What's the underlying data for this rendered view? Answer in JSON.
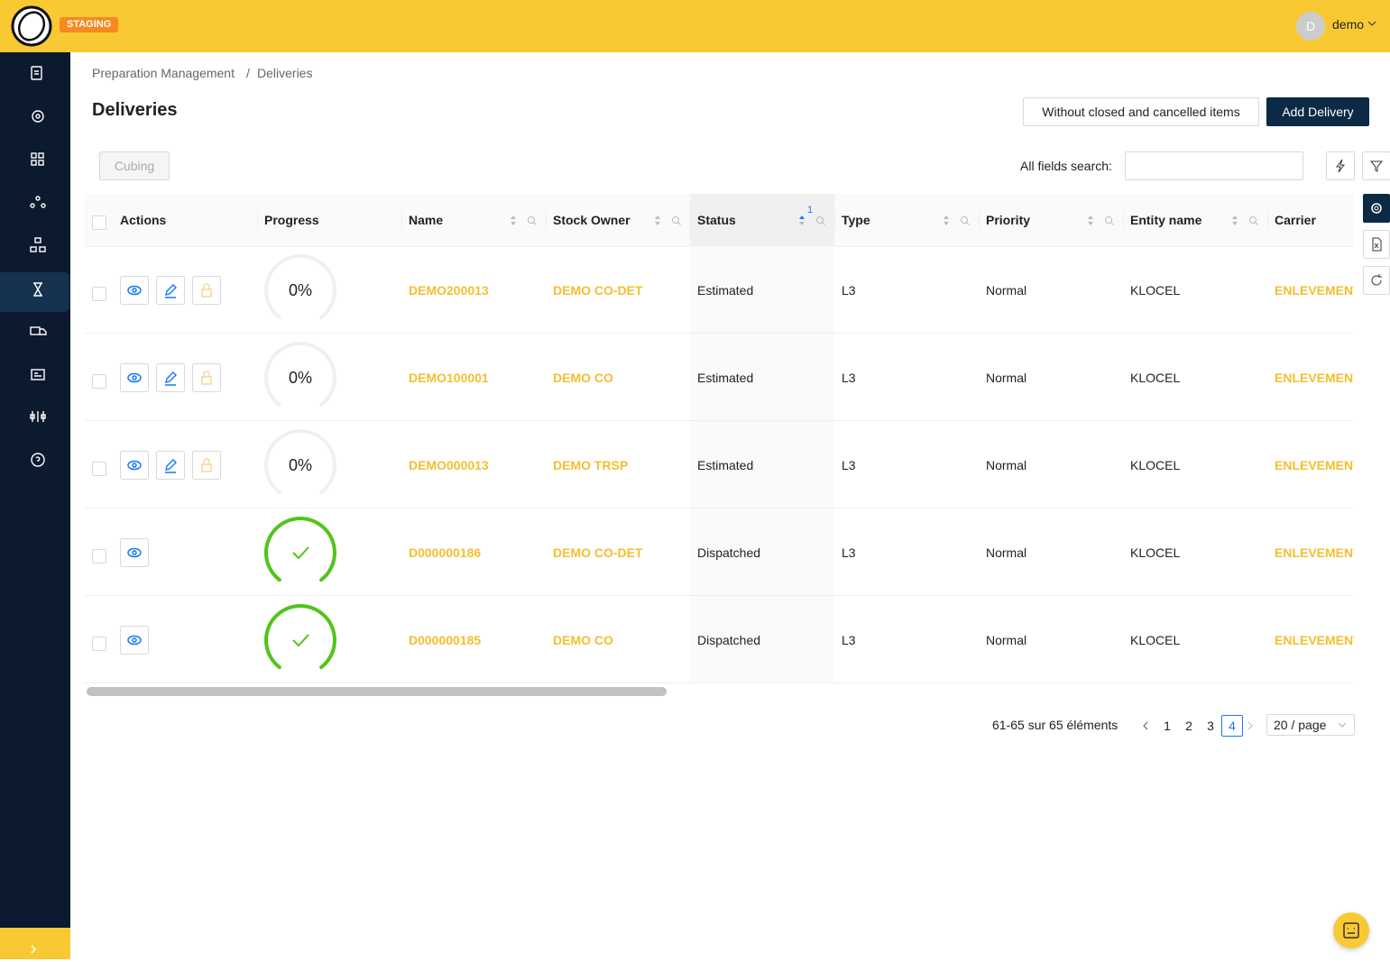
{
  "header": {
    "badge": "STAGING",
    "user_initial": "D",
    "user_name": "demo"
  },
  "breadcrumb": {
    "parent": "Preparation Management",
    "separator": "/",
    "current": "Deliveries"
  },
  "page": {
    "title": "Deliveries",
    "filter_button": "Without closed and cancelled items",
    "add_button": "Add Delivery",
    "cubing_button": "Cubing",
    "search_label": "All fields search:"
  },
  "table": {
    "sort_badge": "1",
    "columns": [
      {
        "title": "Actions",
        "sortable": false
      },
      {
        "title": "Progress",
        "sortable": false
      },
      {
        "title": "Name",
        "sortable": true
      },
      {
        "title": "Stock Owner",
        "sortable": true
      },
      {
        "title": "Status",
        "sortable": true,
        "sorted": true
      },
      {
        "title": "Type",
        "sortable": true
      },
      {
        "title": "Priority",
        "sortable": true
      },
      {
        "title": "Entity name",
        "sortable": true
      },
      {
        "title": "Carrier",
        "sortable": false
      }
    ],
    "rows": [
      {
        "actions": [
          "view",
          "edit",
          "lock"
        ],
        "progress": 0,
        "progress_label": "0%",
        "name": "DEMO200013",
        "stock_owner": "DEMO CO-DET",
        "status": "Estimated",
        "type": "L3",
        "priority": "Normal",
        "entity_name": "KLOCEL",
        "carrier": "ENLEVEMENT"
      },
      {
        "actions": [
          "view",
          "edit",
          "lock"
        ],
        "progress": 0,
        "progress_label": "0%",
        "name": "DEMO100001",
        "stock_owner": "DEMO CO",
        "status": "Estimated",
        "type": "L3",
        "priority": "Normal",
        "entity_name": "KLOCEL",
        "carrier": "ENLEVEMENT"
      },
      {
        "actions": [
          "view",
          "edit",
          "lock"
        ],
        "progress": 0,
        "progress_label": "0%",
        "name": "DEMO000013",
        "stock_owner": "DEMO TRSP",
        "status": "Estimated",
        "type": "L3",
        "priority": "Normal",
        "entity_name": "KLOCEL",
        "carrier": "ENLEVEMENT"
      },
      {
        "actions": [
          "view"
        ],
        "progress": 100,
        "name": "D000000186",
        "stock_owner": "DEMO CO-DET",
        "status": "Dispatched",
        "type": "L3",
        "priority": "Normal",
        "entity_name": "KLOCEL",
        "carrier": "ENLEVEMENT"
      },
      {
        "actions": [
          "view"
        ],
        "progress": 100,
        "name": "D000000185",
        "stock_owner": "DEMO CO",
        "status": "Dispatched",
        "type": "L3",
        "priority": "Normal",
        "entity_name": "KLOCEL",
        "carrier": "ENLEVEMENT"
      }
    ]
  },
  "pagination": {
    "summary": "61-65 sur 65 éléments",
    "pages": [
      1,
      2,
      3,
      4
    ],
    "current": 4,
    "page_size": "20 / page"
  }
}
